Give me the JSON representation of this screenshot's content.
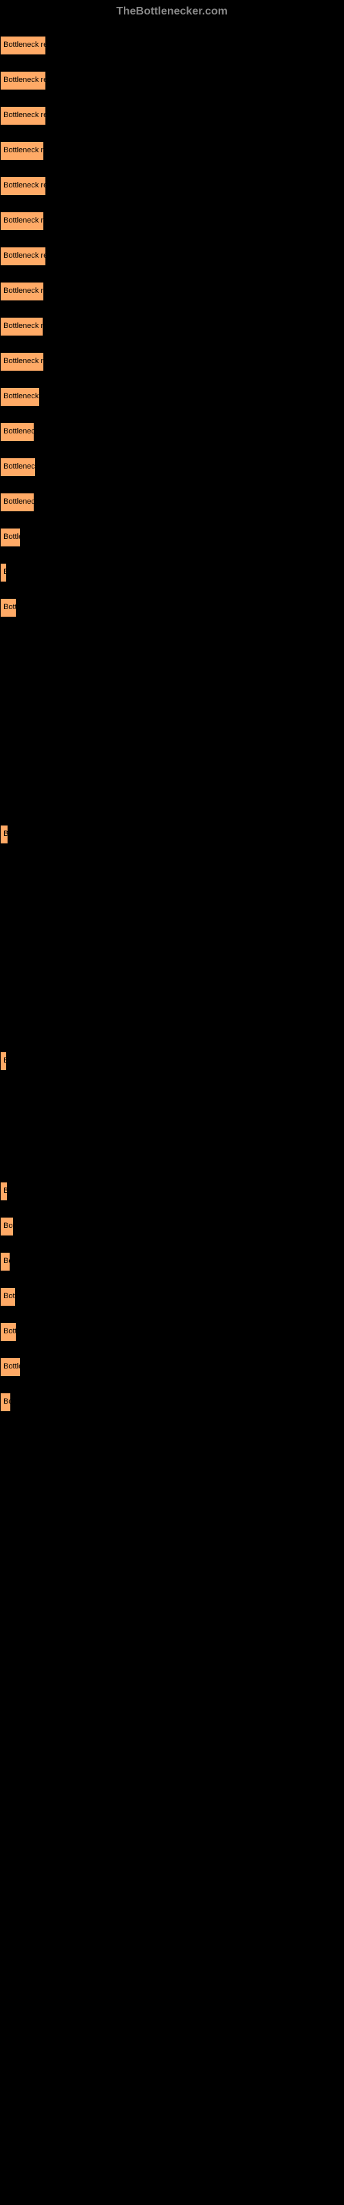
{
  "header": {
    "text": "TheBottlenecker.com"
  },
  "items": [
    {
      "label": "Bottleneck res",
      "width": 67
    },
    {
      "label": "Bottleneck res",
      "width": 67
    },
    {
      "label": "Bottleneck res",
      "width": 67
    },
    {
      "label": "Bottleneck res",
      "width": 64
    },
    {
      "label": "Bottleneck res",
      "width": 67
    },
    {
      "label": "Bottleneck res",
      "width": 64
    },
    {
      "label": "Bottleneck res",
      "width": 67
    },
    {
      "label": "Bottleneck res",
      "width": 64
    },
    {
      "label": "Bottleneck res",
      "width": 63
    },
    {
      "label": "Bottleneck re",
      "width": 64
    },
    {
      "label": "Bottleneck r",
      "width": 58
    },
    {
      "label": "Bottleneck",
      "width": 50
    },
    {
      "label": "Bottleneck",
      "width": 52
    },
    {
      "label": "Bottleneck",
      "width": 50
    },
    {
      "label": "Bottler",
      "width": 30
    },
    {
      "label": "B",
      "width": 6
    },
    {
      "label": "Bott",
      "width": 24
    },
    {
      "label": "",
      "width": 0,
      "spacer": 260
    },
    {
      "label": "B",
      "width": 12
    },
    {
      "label": "",
      "width": 0,
      "spacer": 260
    },
    {
      "label": "B",
      "width": 10
    },
    {
      "label": "",
      "width": 0,
      "spacer": 120
    },
    {
      "label": "B",
      "width": 11
    },
    {
      "label": "Bot",
      "width": 20
    },
    {
      "label": "Bo",
      "width": 15
    },
    {
      "label": "Bott",
      "width": 23
    },
    {
      "label": "Bott",
      "width": 24
    },
    {
      "label": "Bottle",
      "width": 30
    },
    {
      "label": "Bo",
      "width": 16
    }
  ],
  "style": {
    "box_background": "#ffaa66",
    "page_background": "#000000",
    "header_color": "#888888",
    "text_color": "#000000"
  }
}
